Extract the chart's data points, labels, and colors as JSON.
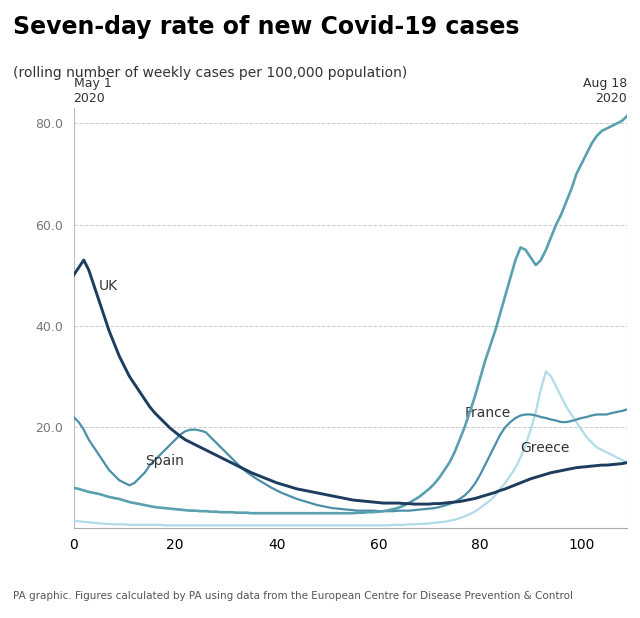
{
  "title": "Seven-day rate of new Covid-19 cases",
  "subtitle": "(rolling number of weekly cases per 100,000 population)",
  "footer": "PA graphic. Figures calculated by PA using data from the European Centre for Disease Prevention & Control",
  "date_label_left": "May 1\n2020",
  "date_label_right": "Aug 18\n2020",
  "ylim": [
    0,
    83
  ],
  "yticks": [
    20.0,
    40.0,
    60.0,
    80.0
  ],
  "n_points": 110,
  "colors": {
    "UK": "#1c3d5e",
    "Spain": "#4b8fa8",
    "France": "#5aa0b0",
    "Greece": "#b0dce8"
  },
  "UK": [
    50.0,
    51.5,
    53.0,
    51.0,
    48.0,
    45.0,
    42.0,
    39.0,
    36.5,
    34.0,
    32.0,
    30.0,
    28.5,
    27.0,
    25.5,
    24.0,
    22.8,
    21.8,
    20.8,
    19.8,
    19.0,
    18.2,
    17.5,
    17.0,
    16.5,
    16.0,
    15.5,
    15.0,
    14.5,
    14.0,
    13.5,
    13.0,
    12.5,
    12.0,
    11.5,
    11.0,
    10.6,
    10.2,
    9.8,
    9.4,
    9.0,
    8.7,
    8.4,
    8.1,
    7.8,
    7.6,
    7.4,
    7.2,
    7.0,
    6.8,
    6.6,
    6.4,
    6.2,
    6.0,
    5.8,
    5.6,
    5.5,
    5.4,
    5.3,
    5.2,
    5.1,
    5.0,
    5.0,
    5.0,
    5.0,
    4.9,
    4.9,
    4.8,
    4.8,
    4.8,
    4.8,
    4.9,
    4.9,
    5.0,
    5.1,
    5.2,
    5.3,
    5.5,
    5.7,
    5.9,
    6.2,
    6.5,
    6.8,
    7.1,
    7.5,
    7.8,
    8.2,
    8.6,
    9.0,
    9.4,
    9.8,
    10.1,
    10.4,
    10.7,
    11.0,
    11.2,
    11.4,
    11.6,
    11.8,
    12.0,
    12.1,
    12.2,
    12.3,
    12.4,
    12.5,
    12.5,
    12.6,
    12.7,
    12.8,
    13.0
  ],
  "Spain": [
    22.0,
    21.0,
    19.5,
    17.5,
    16.0,
    14.5,
    13.0,
    11.5,
    10.5,
    9.5,
    9.0,
    8.5,
    9.0,
    10.0,
    11.0,
    12.5,
    13.5,
    14.5,
    15.5,
    16.5,
    17.5,
    18.5,
    19.2,
    19.5,
    19.5,
    19.3,
    19.0,
    18.0,
    17.0,
    16.0,
    15.0,
    14.0,
    13.0,
    12.0,
    11.2,
    10.5,
    9.8,
    9.2,
    8.6,
    8.0,
    7.5,
    7.0,
    6.6,
    6.2,
    5.8,
    5.5,
    5.2,
    4.9,
    4.6,
    4.4,
    4.2,
    4.0,
    3.9,
    3.8,
    3.7,
    3.6,
    3.5,
    3.5,
    3.5,
    3.5,
    3.4,
    3.4,
    3.4,
    3.4,
    3.5,
    3.5,
    3.5,
    3.6,
    3.7,
    3.8,
    3.9,
    4.0,
    4.2,
    4.5,
    4.8,
    5.2,
    5.8,
    6.5,
    7.5,
    8.8,
    10.5,
    12.5,
    14.5,
    16.5,
    18.5,
    20.0,
    21.0,
    21.8,
    22.3,
    22.5,
    22.5,
    22.3,
    22.0,
    21.8,
    21.5,
    21.3,
    21.0,
    21.0,
    21.2,
    21.5,
    21.8,
    22.0,
    22.3,
    22.5,
    22.5,
    22.5,
    22.8,
    23.0,
    23.2,
    23.5
  ],
  "France": [
    8.0,
    7.8,
    7.5,
    7.2,
    7.0,
    6.8,
    6.5,
    6.2,
    6.0,
    5.8,
    5.5,
    5.2,
    5.0,
    4.8,
    4.6,
    4.4,
    4.2,
    4.1,
    4.0,
    3.9,
    3.8,
    3.7,
    3.6,
    3.5,
    3.5,
    3.4,
    3.4,
    3.3,
    3.3,
    3.2,
    3.2,
    3.2,
    3.1,
    3.1,
    3.1,
    3.0,
    3.0,
    3.0,
    3.0,
    3.0,
    3.0,
    3.0,
    3.0,
    3.0,
    3.0,
    3.0,
    3.0,
    3.0,
    3.0,
    3.0,
    3.0,
    3.0,
    3.0,
    3.0,
    3.0,
    3.0,
    3.1,
    3.1,
    3.2,
    3.2,
    3.3,
    3.4,
    3.6,
    3.8,
    4.1,
    4.5,
    5.0,
    5.6,
    6.2,
    7.0,
    7.8,
    8.8,
    10.0,
    11.5,
    13.0,
    15.0,
    17.5,
    20.0,
    23.0,
    26.0,
    29.5,
    33.0,
    36.0,
    39.0,
    42.5,
    46.0,
    49.5,
    53.0,
    55.5,
    55.0,
    53.5,
    52.0,
    53.0,
    55.0,
    57.5,
    60.0,
    62.0,
    64.5,
    67.0,
    70.0,
    72.0,
    74.0,
    76.0,
    77.5,
    78.5,
    79.0,
    79.5,
    80.0,
    80.5,
    81.5
  ],
  "Greece": [
    1.5,
    1.4,
    1.3,
    1.2,
    1.1,
    1.0,
    0.9,
    0.9,
    0.8,
    0.8,
    0.8,
    0.7,
    0.7,
    0.7,
    0.7,
    0.7,
    0.7,
    0.7,
    0.6,
    0.6,
    0.6,
    0.6,
    0.6,
    0.6,
    0.6,
    0.6,
    0.6,
    0.6,
    0.6,
    0.6,
    0.6,
    0.6,
    0.6,
    0.6,
    0.6,
    0.6,
    0.6,
    0.6,
    0.6,
    0.6,
    0.6,
    0.6,
    0.6,
    0.6,
    0.6,
    0.6,
    0.6,
    0.6,
    0.6,
    0.6,
    0.6,
    0.6,
    0.6,
    0.6,
    0.6,
    0.6,
    0.6,
    0.6,
    0.6,
    0.6,
    0.6,
    0.6,
    0.6,
    0.7,
    0.7,
    0.7,
    0.8,
    0.8,
    0.9,
    0.9,
    1.0,
    1.1,
    1.2,
    1.3,
    1.5,
    1.7,
    2.0,
    2.4,
    2.8,
    3.3,
    4.0,
    4.8,
    5.5,
    6.5,
    7.8,
    9.0,
    10.5,
    12.0,
    14.0,
    16.5,
    19.5,
    23.0,
    27.5,
    31.0,
    30.0,
    28.0,
    26.0,
    24.0,
    22.5,
    21.0,
    19.5,
    18.0,
    17.0,
    16.0,
    15.5,
    15.0,
    14.5,
    14.0,
    13.5,
    13.0
  ]
}
